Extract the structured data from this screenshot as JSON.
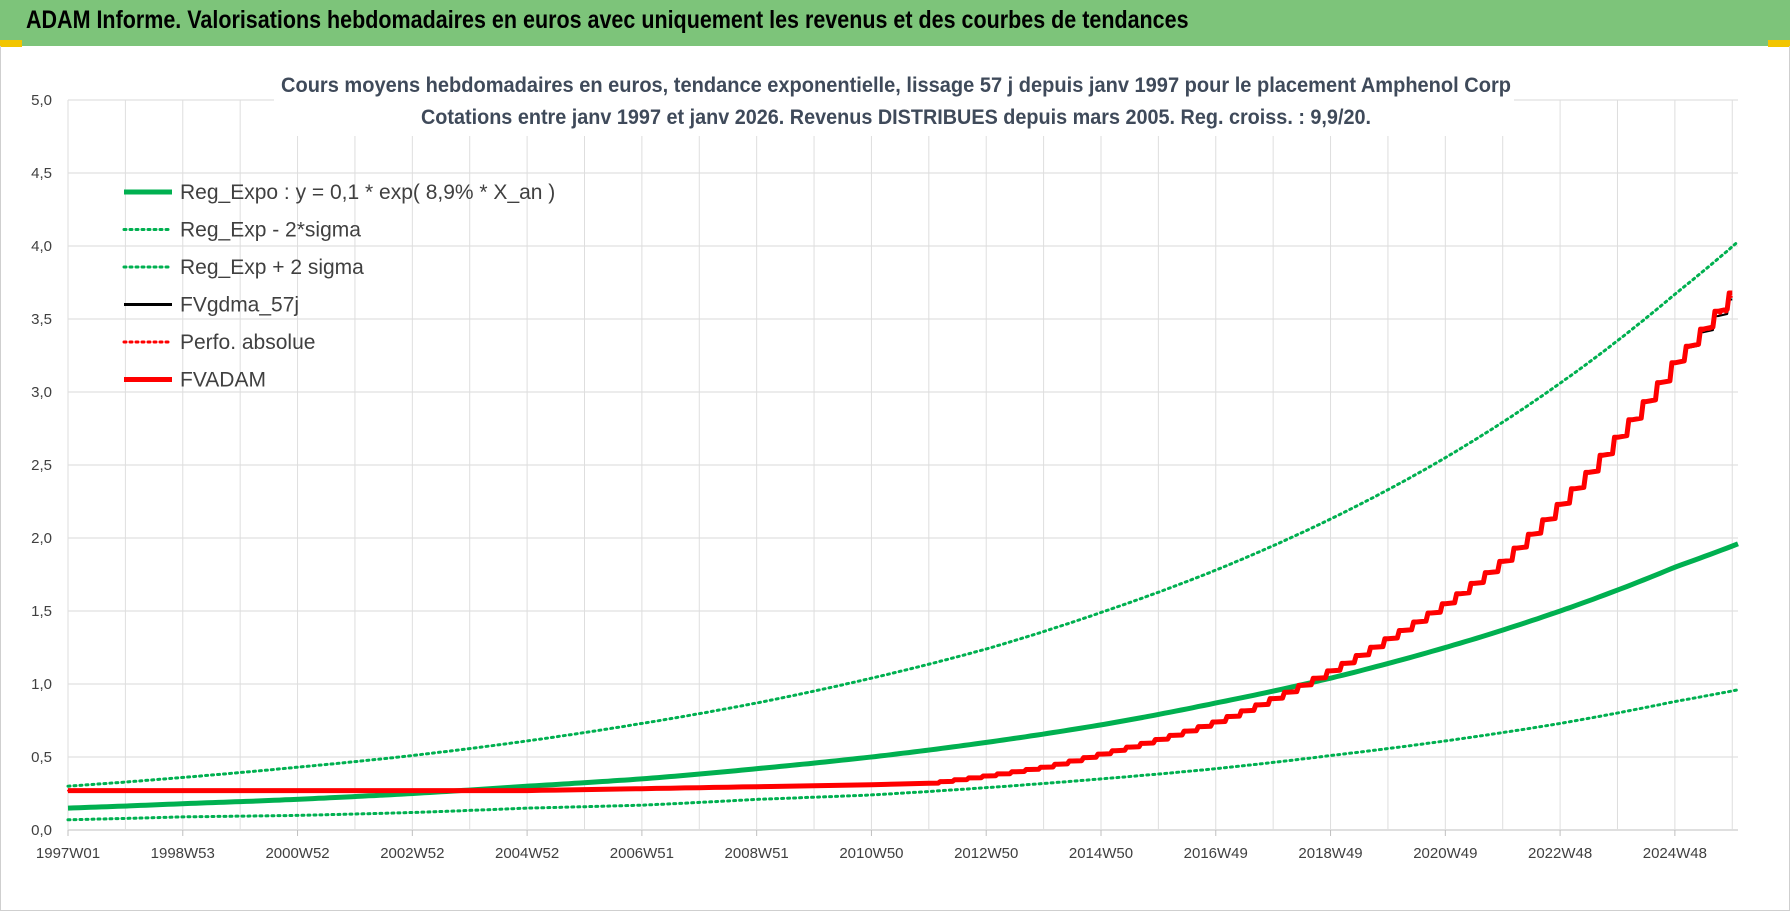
{
  "banner": {
    "title": "ADAM Informe. Valorisations hebdomadaires en euros avec uniquement les revenus et des courbes de tendances",
    "color": "#7dc47a"
  },
  "chart_data": {
    "type": "line",
    "title": "Cours moyens hebdomadaires en euros, tendance exponentielle, lissage 57 j depuis janv 1997  pour le placement Amphenol Corp",
    "subtitle": "Cotations entre janv 1997 et janv 2026. Revenus DISTRIBUES depuis mars 2005.  Reg. croiss. : 9,9/20.",
    "xlabel": "",
    "ylabel": "",
    "ylim": [
      0,
      5
    ],
    "y_ticks": [
      "0,0",
      "0,5",
      "1,0",
      "1,5",
      "2,0",
      "2,5",
      "3,0",
      "3,5",
      "4,0",
      "4,5",
      "5,0"
    ],
    "x_range": [
      1997.0,
      2026.1
    ],
    "x_tick_labels": [
      "1997W01",
      "1998W53",
      "2000W52",
      "2002W52",
      "2004W52",
      "2006W51",
      "2008W51",
      "2010W50",
      "2012W50",
      "2014W50",
      "2016W49",
      "2018W49",
      "2020W49",
      "2022W48",
      "2024W48"
    ],
    "grid": true,
    "legend_position": "top-left",
    "series": [
      {
        "name": "Reg_Expo : y = 0,1 * exp( 8,9% *  X_an )",
        "color": "#00b050",
        "style": "solid-thick",
        "x": [
          1997,
          1999,
          2001,
          2003,
          2005,
          2007,
          2009,
          2011,
          2013,
          2015,
          2017,
          2019,
          2021,
          2023,
          2025,
          2026.1
        ],
        "values": [
          0.15,
          0.18,
          0.21,
          0.25,
          0.3,
          0.35,
          0.42,
          0.5,
          0.6,
          0.72,
          0.87,
          1.04,
          1.25,
          1.5,
          1.8,
          1.96
        ]
      },
      {
        "name": "Reg_Exp - 2*sigma",
        "color": "#00b050",
        "style": "dotted",
        "x": [
          1997,
          1999,
          2001,
          2003,
          2005,
          2007,
          2009,
          2011,
          2013,
          2015,
          2017,
          2019,
          2021,
          2023,
          2025,
          2026.1
        ],
        "values": [
          0.07,
          0.09,
          0.1,
          0.12,
          0.15,
          0.17,
          0.21,
          0.24,
          0.29,
          0.35,
          0.42,
          0.51,
          0.61,
          0.73,
          0.88,
          0.96
        ]
      },
      {
        "name": "Reg_Exp + 2 sigma",
        "color": "#00b050",
        "style": "dotted",
        "x": [
          1997,
          1999,
          2001,
          2003,
          2005,
          2007,
          2009,
          2011,
          2013,
          2015,
          2017,
          2019,
          2021,
          2023,
          2025,
          2026.1
        ],
        "values": [
          0.3,
          0.36,
          0.43,
          0.51,
          0.61,
          0.73,
          0.87,
          1.04,
          1.24,
          1.49,
          1.78,
          2.13,
          2.55,
          3.06,
          3.67,
          4.03
        ]
      },
      {
        "name": "FVgdma_57j",
        "color": "#000000",
        "style": "solid",
        "x": [
          1997,
          2002,
          2005,
          2008,
          2011,
          2012,
          2013,
          2014,
          2015,
          2016,
          2017,
          2018,
          2019,
          2020,
          2021,
          2022,
          2023,
          2024,
          2025,
          2026.1
        ],
        "values": [
          0.27,
          0.27,
          0.27,
          0.29,
          0.31,
          0.32,
          0.37,
          0.43,
          0.52,
          0.62,
          0.74,
          0.9,
          1.09,
          1.31,
          1.55,
          1.84,
          2.23,
          2.69,
          3.2,
          3.68
        ]
      },
      {
        "name": "Perfo. absolue",
        "color": "#ff0000",
        "style": "dotted",
        "x": [
          1997,
          2002,
          2005,
          2008,
          2011,
          2012,
          2013,
          2014,
          2015,
          2016,
          2017,
          2018,
          2019,
          2020,
          2021,
          2022,
          2023,
          2024,
          2025,
          2026.1
        ],
        "values": [
          0.27,
          0.27,
          0.27,
          0.29,
          0.31,
          0.32,
          0.37,
          0.43,
          0.52,
          0.62,
          0.74,
          0.9,
          1.09,
          1.31,
          1.55,
          1.84,
          2.23,
          2.69,
          3.2,
          3.7
        ]
      },
      {
        "name": "FVADAM",
        "color": "#ff0000",
        "style": "solid-thick",
        "x": [
          1997,
          2002,
          2005,
          2008,
          2011,
          2012,
          2013,
          2014,
          2015,
          2016,
          2017,
          2018,
          2019,
          2020,
          2021,
          2022,
          2023,
          2024,
          2025,
          2026.1
        ],
        "values": [
          0.27,
          0.27,
          0.27,
          0.29,
          0.31,
          0.32,
          0.37,
          0.43,
          0.52,
          0.62,
          0.74,
          0.9,
          1.09,
          1.31,
          1.55,
          1.84,
          2.23,
          2.69,
          3.2,
          3.73
        ]
      }
    ]
  }
}
